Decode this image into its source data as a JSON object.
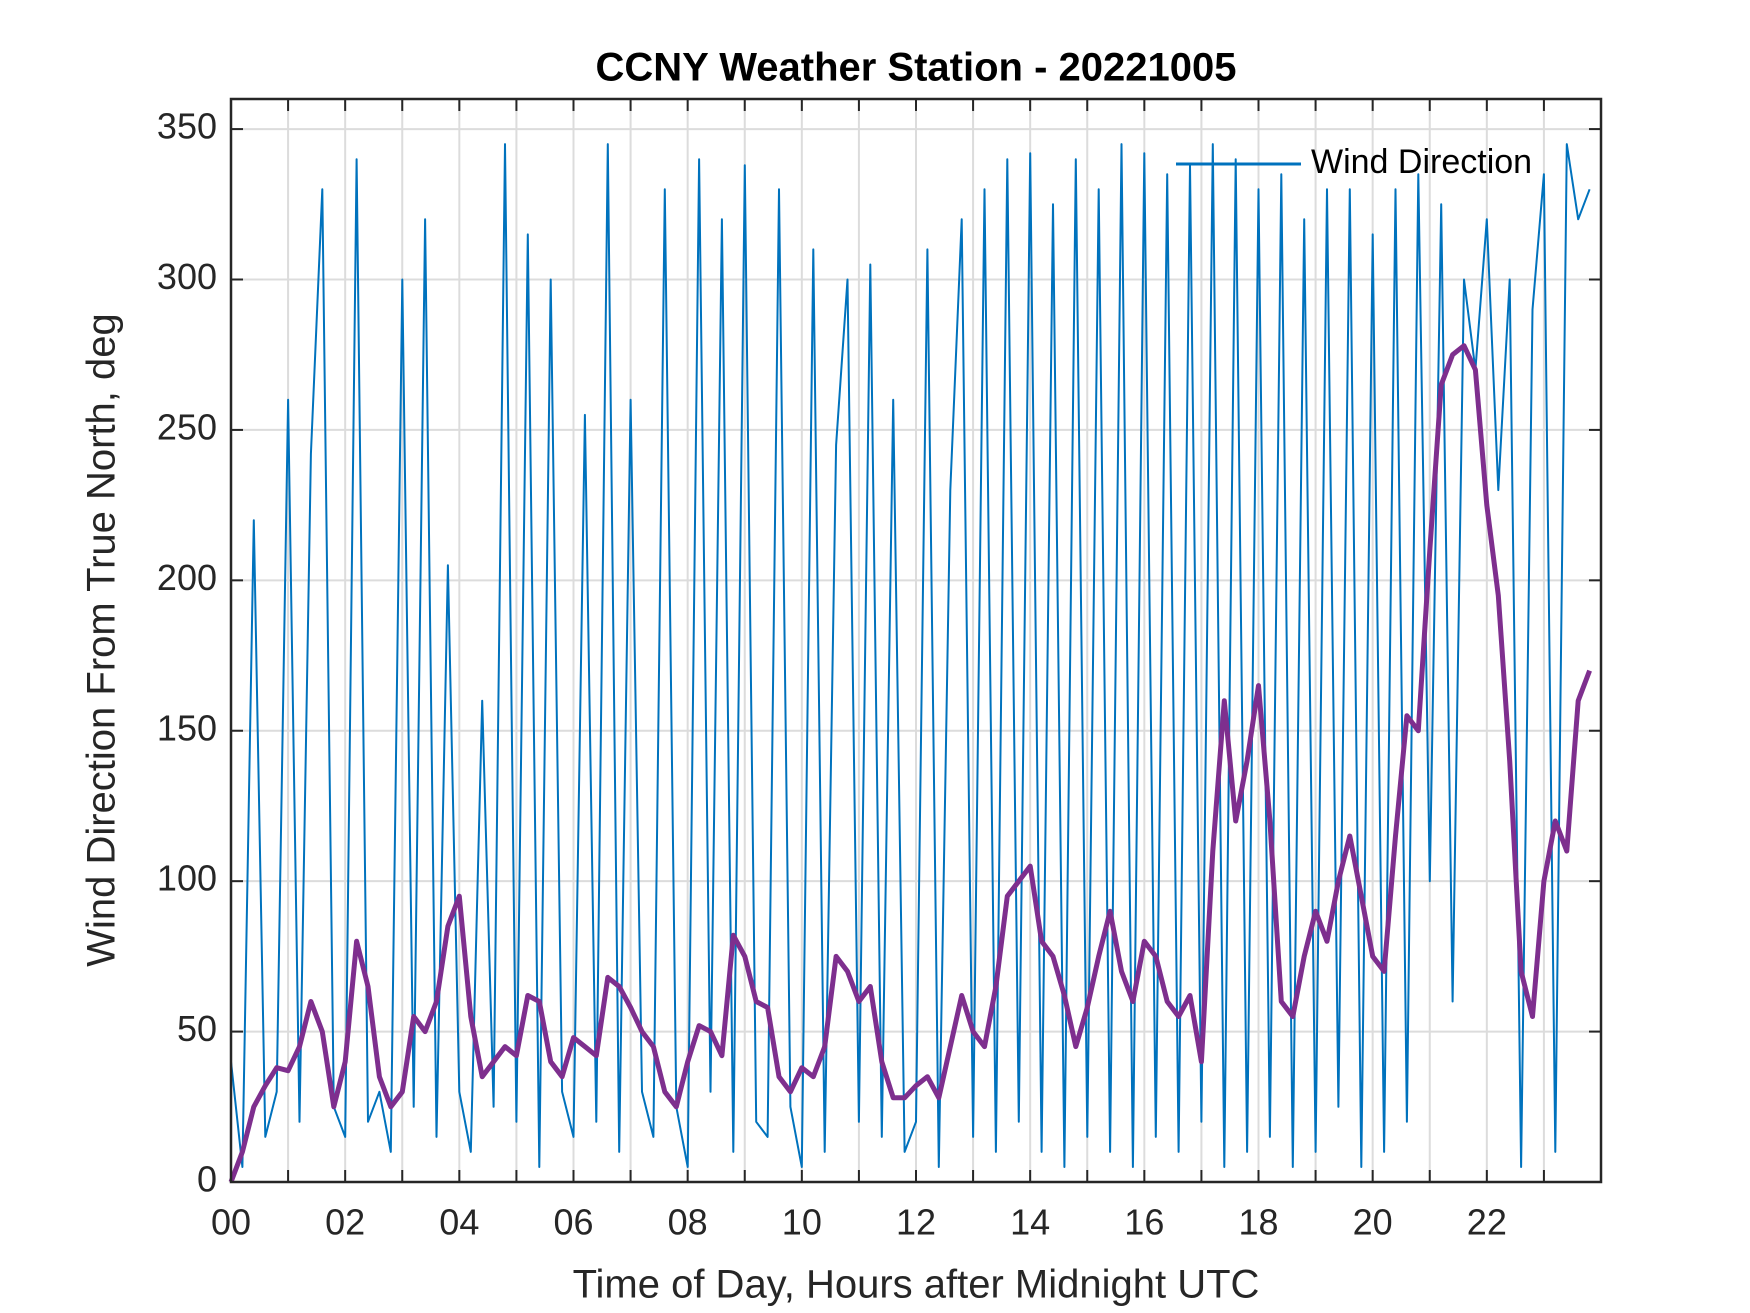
{
  "chart_data": {
    "type": "line",
    "title": "CCNY Weather Station - 20221005",
    "xlabel": "Time of Day, Hours after Midnight UTC",
    "ylabel": "Wind Direction From True North, deg",
    "xlim": [
      0,
      24
    ],
    "ylim": [
      0,
      360
    ],
    "xticks": [
      {
        "value": 0,
        "label": "00"
      },
      {
        "value": 2,
        "label": "02"
      },
      {
        "value": 4,
        "label": "04"
      },
      {
        "value": 6,
        "label": "06"
      },
      {
        "value": 8,
        "label": "08"
      },
      {
        "value": 10,
        "label": "10"
      },
      {
        "value": 12,
        "label": "12"
      },
      {
        "value": 14,
        "label": "14"
      },
      {
        "value": 16,
        "label": "16"
      },
      {
        "value": 18,
        "label": "18"
      },
      {
        "value": 20,
        "label": "20"
      },
      {
        "value": 22,
        "label": "22"
      }
    ],
    "xminorticks": [
      1,
      3,
      5,
      7,
      9,
      11,
      13,
      15,
      17,
      19,
      21,
      23
    ],
    "yticks": [
      0,
      50,
      100,
      150,
      200,
      250,
      300,
      350
    ],
    "grid": true,
    "legend": "upper right",
    "x": [
      0,
      0.2,
      0.4,
      0.6,
      0.8,
      1,
      1.2,
      1.4,
      1.6,
      1.8,
      2,
      2.2,
      2.4,
      2.6,
      2.8,
      3,
      3.2,
      3.4,
      3.6,
      3.8,
      4,
      4.2,
      4.4,
      4.6,
      4.8,
      5,
      5.2,
      5.4,
      5.6,
      5.8,
      6,
      6.2,
      6.4,
      6.6,
      6.8,
      7,
      7.2,
      7.4,
      7.6,
      7.8,
      8,
      8.2,
      8.4,
      8.6,
      8.8,
      9,
      9.2,
      9.4,
      9.6,
      9.8,
      10,
      10.2,
      10.4,
      10.6,
      10.8,
      11,
      11.2,
      11.4,
      11.6,
      11.8,
      12,
      12.2,
      12.4,
      12.6,
      12.8,
      13,
      13.2,
      13.4,
      13.6,
      13.8,
      14,
      14.2,
      14.4,
      14.6,
      14.8,
      15,
      15.2,
      15.4,
      15.6,
      15.8,
      16,
      16.2,
      16.4,
      16.6,
      16.8,
      17,
      17.2,
      17.4,
      17.6,
      17.8,
      18,
      18.2,
      18.4,
      18.6,
      18.8,
      19,
      19.2,
      19.4,
      19.6,
      19.8,
      20,
      20.2,
      20.4,
      20.6,
      20.8,
      21,
      21.2,
      21.4,
      21.6,
      21.8,
      22,
      22.2,
      22.4,
      22.6,
      22.8,
      23,
      23.2,
      23.4,
      23.6,
      23.8
    ],
    "series": [
      {
        "name": "Wind Direction",
        "color": "#0072bd",
        "values": [
          40,
          5,
          220,
          15,
          30,
          260,
          20,
          242,
          330,
          25,
          15,
          340,
          20,
          30,
          10,
          300,
          25,
          320,
          15,
          205,
          30,
          10,
          160,
          25,
          345,
          20,
          315,
          5,
          300,
          30,
          15,
          255,
          20,
          345,
          10,
          260,
          30,
          15,
          330,
          25,
          5,
          340,
          30,
          320,
          10,
          338,
          20,
          15,
          330,
          25,
          5,
          310,
          10,
          245,
          300,
          20,
          305,
          15,
          260,
          10,
          20,
          310,
          5,
          230,
          320,
          15,
          330,
          10,
          340,
          20,
          342,
          10,
          325,
          5,
          340,
          15,
          330,
          10,
          345,
          5,
          342,
          15,
          335,
          10,
          338,
          20,
          345,
          5,
          340,
          10,
          330,
          15,
          335,
          5,
          320,
          10,
          330,
          25,
          330,
          5,
          315,
          10,
          330,
          20,
          335,
          100,
          325,
          60,
          300,
          270,
          320,
          230,
          300,
          5,
          290,
          335,
          10,
          345,
          320,
          330
        ]
      },
      {
        "color": "#7e2f8e",
        "values": [
          0,
          10,
          25,
          32,
          38,
          37,
          45,
          60,
          50,
          25,
          40,
          80,
          65,
          35,
          25,
          30,
          55,
          50,
          60,
          85,
          95,
          55,
          35,
          40,
          45,
          42,
          62,
          60,
          40,
          35,
          48,
          45,
          42,
          68,
          65,
          58,
          50,
          45,
          30,
          25,
          40,
          52,
          50,
          42,
          82,
          75,
          60,
          58,
          35,
          30,
          38,
          35,
          45,
          75,
          70,
          60,
          65,
          40,
          28,
          28,
          32,
          35,
          28,
          45,
          62,
          50,
          45,
          65,
          95,
          100,
          105,
          80,
          75,
          62,
          45,
          58,
          75,
          90,
          70,
          60,
          80,
          75,
          60,
          55,
          62,
          40,
          110,
          160,
          120,
          140,
          165,
          120,
          60,
          55,
          75,
          90,
          80,
          100,
          115,
          95,
          75,
          70,
          115,
          155,
          150,
          210,
          265,
          275,
          278,
          270,
          225,
          195,
          140,
          70,
          55,
          100,
          120,
          110,
          160,
          170
        ]
      }
    ]
  }
}
